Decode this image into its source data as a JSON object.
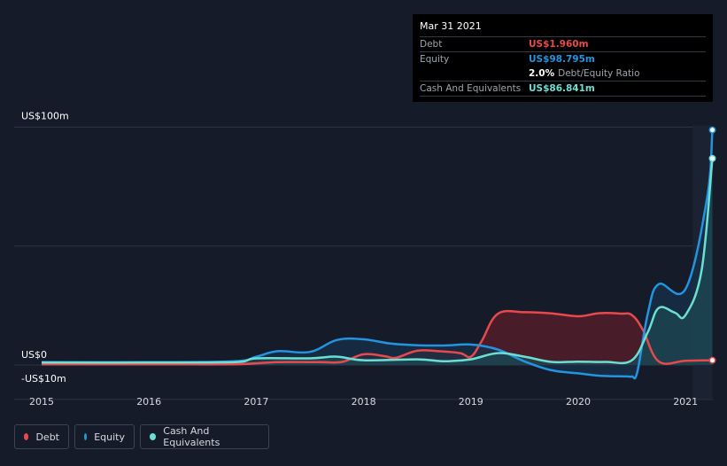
{
  "chart_data": {
    "type": "area",
    "x_unit": "year",
    "ylim": [
      -10,
      100
    ],
    "y_ticks": [
      {
        "value": 100,
        "label": "US$100m"
      },
      {
        "value": 0,
        "label": "US$0"
      },
      {
        "value": -10,
        "label": "-US$10m"
      }
    ],
    "x_ticks": [
      "2015",
      "2016",
      "2017",
      "2018",
      "2019",
      "2020",
      "2021"
    ],
    "grid": true,
    "series": [
      {
        "name": "Debt",
        "color": "#e9484d",
        "fill": "#5a1f29",
        "points": [
          [
            2015.0,
            0.3
          ],
          [
            2016.0,
            0.3
          ],
          [
            2016.8,
            0.3
          ],
          [
            2017.2,
            1.2
          ],
          [
            2017.6,
            1.2
          ],
          [
            2017.8,
            1.3
          ],
          [
            2018.0,
            4.5
          ],
          [
            2018.2,
            3.7
          ],
          [
            2018.3,
            3.0
          ],
          [
            2018.5,
            6.0
          ],
          [
            2018.7,
            5.8
          ],
          [
            2018.9,
            5.0
          ],
          [
            2019.0,
            3.5
          ],
          [
            2019.1,
            10.0
          ],
          [
            2019.25,
            21.5
          ],
          [
            2019.5,
            22.2
          ],
          [
            2019.75,
            21.7
          ],
          [
            2020.0,
            20.5
          ],
          [
            2020.2,
            21.8
          ],
          [
            2020.4,
            21.6
          ],
          [
            2020.5,
            21.0
          ],
          [
            2020.6,
            15.0
          ],
          [
            2020.75,
            1.5
          ],
          [
            2021.0,
            1.8
          ],
          [
            2021.25,
            1.96
          ]
        ]
      },
      {
        "name": "Equity",
        "color": "#2394df",
        "fill": "#17324a",
        "points": [
          [
            2015.0,
            1.2
          ],
          [
            2016.0,
            1.2
          ],
          [
            2016.8,
            1.6
          ],
          [
            2017.0,
            3.5
          ],
          [
            2017.2,
            5.8
          ],
          [
            2017.5,
            5.5
          ],
          [
            2017.75,
            10.5
          ],
          [
            2018.0,
            10.8
          ],
          [
            2018.25,
            9.0
          ],
          [
            2018.5,
            8.3
          ],
          [
            2018.75,
            8.2
          ],
          [
            2019.0,
            8.6
          ],
          [
            2019.25,
            6.5
          ],
          [
            2019.5,
            1.5
          ],
          [
            2019.75,
            -2.2
          ],
          [
            2020.0,
            -3.5
          ],
          [
            2020.2,
            -4.5
          ],
          [
            2020.45,
            -4.8
          ],
          [
            2020.5,
            -4.8
          ],
          [
            2020.55,
            -3.0
          ],
          [
            2020.65,
            22.0
          ],
          [
            2020.75,
            34.0
          ],
          [
            2021.0,
            32.0
          ],
          [
            2021.2,
            70.0
          ],
          [
            2021.25,
            98.795
          ]
        ]
      },
      {
        "name": "Cash And Equivalents",
        "color": "#6cdfd4",
        "fill": "#1d4752",
        "points": [
          [
            2015.0,
            1.0
          ],
          [
            2016.0,
            1.0
          ],
          [
            2016.8,
            1.2
          ],
          [
            2017.0,
            2.8
          ],
          [
            2017.5,
            2.8
          ],
          [
            2017.75,
            3.5
          ],
          [
            2018.0,
            2.0
          ],
          [
            2018.5,
            2.4
          ],
          [
            2018.75,
            1.6
          ],
          [
            2019.0,
            2.4
          ],
          [
            2019.25,
            5.0
          ],
          [
            2019.5,
            3.5
          ],
          [
            2019.75,
            1.3
          ],
          [
            2020.0,
            1.4
          ],
          [
            2020.25,
            1.3
          ],
          [
            2020.5,
            2.0
          ],
          [
            2020.65,
            14.0
          ],
          [
            2020.75,
            24.0
          ],
          [
            2020.9,
            22.0
          ],
          [
            2021.0,
            21.0
          ],
          [
            2021.15,
            40.0
          ],
          [
            2021.25,
            86.841
          ]
        ]
      }
    ]
  },
  "tooltip": {
    "date": "Mar 31 2021",
    "debt_label": "Debt",
    "debt_value": "US$1.960m",
    "equity_label": "Equity",
    "equity_value": "US$98.795m",
    "ratio_value": "2.0%",
    "ratio_label": "Debt/Equity Ratio",
    "cash_label": "Cash And Equivalents",
    "cash_value": "US$86.841m"
  },
  "legend": [
    {
      "label": "Debt",
      "color": "#e9484d"
    },
    {
      "label": "Equity",
      "color": "#2394df"
    },
    {
      "label": "Cash And Equivalents",
      "color": "#6cdfd4"
    }
  ]
}
